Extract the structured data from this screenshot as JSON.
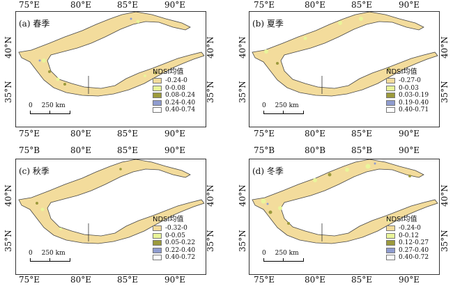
{
  "lon_labels": [
    "75°E",
    "80°E",
    "85°E",
    "90°E"
  ],
  "lon_labels_variant": [
    "75°B",
    "80°B",
    "85°B",
    "90°E"
  ],
  "lat_labels": [
    "40°N",
    "35°N"
  ],
  "panels": [
    {
      "title": "(a) 春季",
      "legend_title": "NDSI均值",
      "legend_items": [
        {
          "label": "-0.24-0",
          "color": "#f3dc9c"
        },
        {
          "label": "0-0.08",
          "color": "#e9f59a"
        },
        {
          "label": "0.08-0.24",
          "color": "#9c9a3c"
        },
        {
          "label": "0.24-0.40",
          "color": "#8f9ccf"
        },
        {
          "label": "0.40-0.74",
          "color": "#ffffff"
        }
      ],
      "scale_zero": "0",
      "scale_label": "250 km"
    },
    {
      "title": "(b) 夏季",
      "legend_title": "NDSI均值",
      "legend_items": [
        {
          "label": "-0.27-0",
          "color": "#f3dc9c"
        },
        {
          "label": "0-0.03",
          "color": "#e9f59a"
        },
        {
          "label": "0.03-0.19",
          "color": "#9c9a3c"
        },
        {
          "label": "0.19-0.40",
          "color": "#8f9ccf"
        },
        {
          "label": "0.40-0.71",
          "color": "#ffffff"
        }
      ],
      "scale_zero": "0",
      "scale_label": "250 km"
    },
    {
      "title": "(c) 秋季",
      "legend_title": "NDSI均值",
      "legend_items": [
        {
          "label": "-0.32-0",
          "color": "#f3dc9c"
        },
        {
          "label": "0-0.05",
          "color": "#e9f59a"
        },
        {
          "label": "0.05-0.22",
          "color": "#9c9a3c"
        },
        {
          "label": "0.22-0.40",
          "color": "#8f9ccf"
        },
        {
          "label": "0.40-0.72",
          "color": "#ffffff"
        }
      ],
      "scale_zero": "0",
      "scale_label": "250 km"
    },
    {
      "title": "(d) 冬季",
      "legend_title": "NDSI均值",
      "legend_items": [
        {
          "label": "-0.24-0",
          "color": "#f3dc9c"
        },
        {
          "label": "0-0.12",
          "color": "#e9f59a"
        },
        {
          "label": "0.12-0.27",
          "color": "#9c9a3c"
        },
        {
          "label": "0.27-0.40",
          "color": "#8f9ccf"
        },
        {
          "label": "0.40-0.72",
          "color": "#ffffff"
        }
      ],
      "scale_zero": "0",
      "scale_label": "250 km"
    }
  ],
  "colors": {
    "base_fill": "#f3dc9c",
    "low_snow": "#e9f59a",
    "mid_snow": "#9c9a3c",
    "high_snow": "#8f9ccf",
    "outline": "#444444"
  }
}
